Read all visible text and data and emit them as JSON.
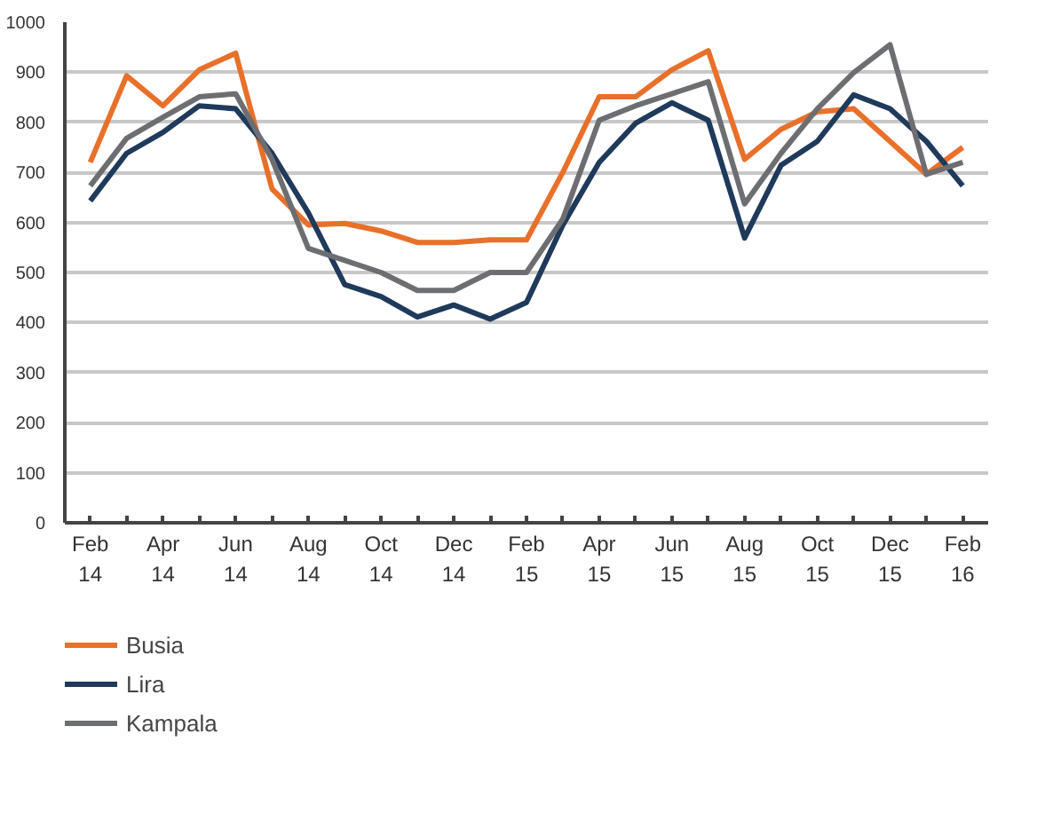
{
  "chart_data": {
    "type": "line",
    "categories": [
      "Feb\n14",
      null,
      "Apr\n14",
      null,
      "Jun\n14",
      null,
      "Aug\n14",
      null,
      "Oct\n14",
      null,
      "Dec\n14",
      null,
      "Feb\n15",
      null,
      "Apr\n15",
      null,
      "Jun\n15",
      null,
      "Aug\n15",
      null,
      "Oct\n15",
      null,
      "Dec\n15",
      null,
      "Feb\n16"
    ],
    "series": [
      {
        "name": "Busia",
        "color": "#e8702a",
        "values": [
          720,
          893,
          833,
          905,
          938,
          667,
          595,
          598,
          583,
          560,
          560,
          565,
          565,
          700,
          851,
          851,
          905,
          943,
          726,
          786,
          821,
          827,
          762,
          696,
          750
        ]
      },
      {
        "name": "Lira",
        "color": "#1f3a5a",
        "values": [
          643,
          738,
          780,
          833,
          827,
          738,
          619,
          476,
          452,
          411,
          435,
          407,
          440,
          595,
          720,
          798,
          839,
          804,
          569,
          714,
          762,
          855,
          827,
          762,
          673
        ]
      },
      {
        "name": "Kampala",
        "color": "#6d6e71",
        "values": [
          673,
          768,
          810,
          851,
          857,
          726,
          548,
          524,
          500,
          464,
          464,
          500,
          500,
          607,
          804,
          833,
          857,
          881,
          637,
          738,
          827,
          899,
          955,
          696,
          720
        ]
      }
    ],
    "ylim": [
      0,
      1000
    ],
    "yticks": [
      0,
      100,
      200,
      300,
      400,
      500,
      600,
      700,
      800,
      900,
      1000
    ],
    "grid": "y",
    "legend": "bottom",
    "marker": "none",
    "line_style": "solid"
  }
}
